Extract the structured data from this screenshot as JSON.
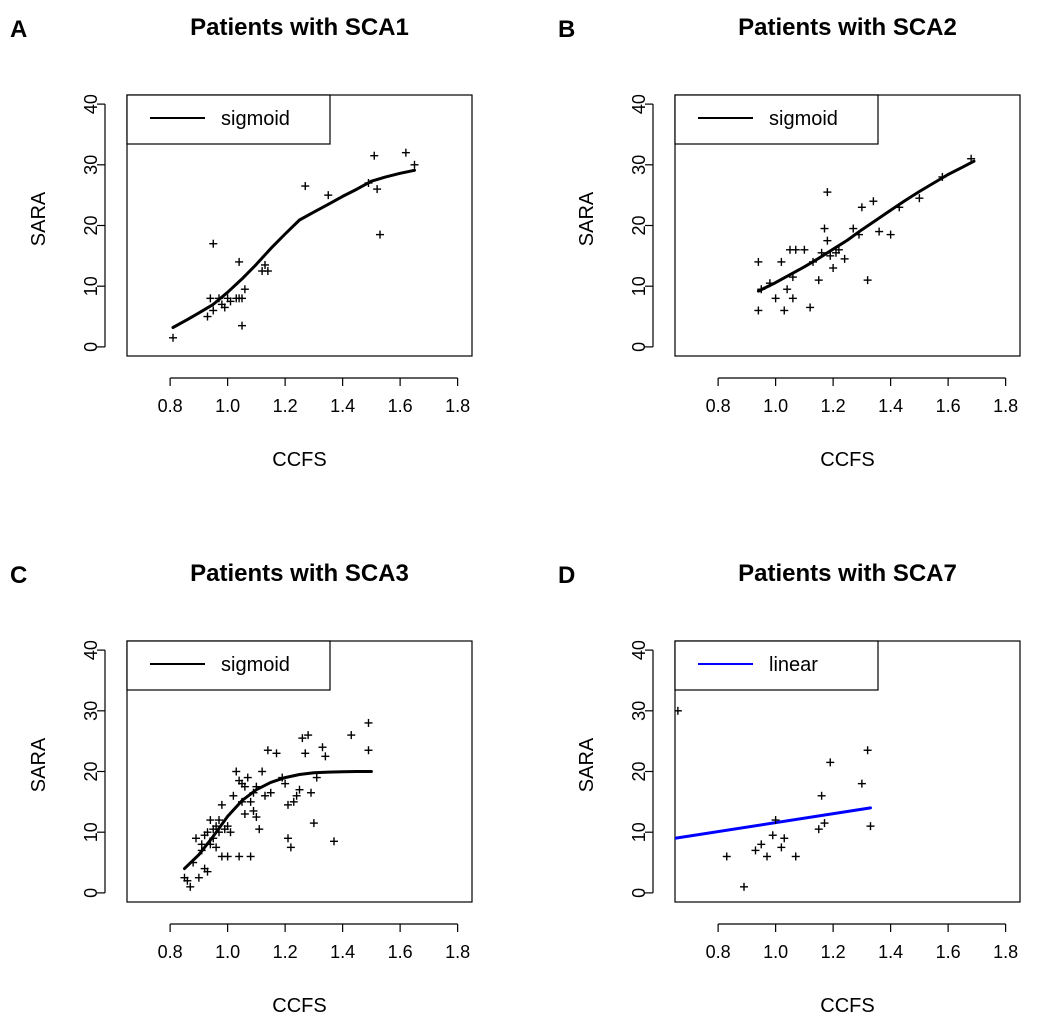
{
  "chart_data": [
    {
      "panel": "A",
      "type": "scatter",
      "title": "Patients with SCA1",
      "xlabel": "CCFS",
      "ylabel": "SARA",
      "xlim": [
        0.65,
        1.85
      ],
      "ylim": [
        -1.5,
        41.5
      ],
      "xticks": [
        "0.8",
        "1.0",
        "1.2",
        "1.4",
        "1.6",
        "1.8"
      ],
      "yticks": [
        "0",
        "10",
        "20",
        "30",
        "40"
      ],
      "legend": {
        "label": "sigmoid",
        "color": "#000000",
        "position": "top-left"
      },
      "fit": {
        "color": "#000000",
        "x": [
          0.81,
          0.86,
          0.9,
          0.95,
          1.0,
          1.05,
          1.1,
          1.15,
          1.2,
          1.25,
          1.3,
          1.35,
          1.4,
          1.45,
          1.5,
          1.55,
          1.6,
          1.65
        ],
        "y": [
          3.2,
          4.5,
          5.6,
          7.0,
          9.0,
          11.2,
          13.6,
          16.2,
          18.6,
          20.9,
          22.2,
          23.5,
          24.8,
          26.0,
          27.3,
          28.0,
          28.6,
          29.1
        ]
      },
      "points": {
        "x": [
          0.81,
          0.93,
          0.94,
          0.95,
          0.97,
          0.98,
          0.99,
          1.0,
          1.01,
          1.03,
          1.04,
          1.04,
          1.05,
          1.05,
          1.06,
          1.12,
          1.13,
          1.14,
          0.95,
          1.27,
          1.35,
          1.49,
          1.51,
          1.52,
          1.53,
          1.62,
          1.65
        ],
        "y": [
          1.5,
          5.0,
          8.0,
          6.0,
          8.0,
          7.0,
          6.5,
          8.0,
          7.5,
          8.0,
          14.0,
          8.0,
          3.5,
          8.0,
          9.5,
          12.5,
          13.5,
          12.5,
          17.0,
          26.5,
          25.0,
          27.0,
          31.5,
          26.0,
          18.5,
          32.0,
          30.0
        ]
      }
    },
    {
      "panel": "B",
      "type": "scatter",
      "title": "Patients with SCA2",
      "xlabel": "CCFS",
      "ylabel": "SARA",
      "xlim": [
        0.65,
        1.85
      ],
      "ylim": [
        -1.5,
        41.5
      ],
      "xticks": [
        "0.8",
        "1.0",
        "1.2",
        "1.4",
        "1.6",
        "1.8"
      ],
      "yticks": [
        "0",
        "10",
        "20",
        "30",
        "40"
      ],
      "legend": {
        "label": "sigmoid",
        "color": "#000000",
        "position": "top-left"
      },
      "fit": {
        "color": "#000000",
        "x": [
          0.94,
          1.0,
          1.05,
          1.1,
          1.15,
          1.2,
          1.25,
          1.3,
          1.35,
          1.4,
          1.45,
          1.5,
          1.55,
          1.6,
          1.65,
          1.69
        ],
        "y": [
          9.2,
          10.6,
          11.9,
          13.2,
          14.6,
          16.1,
          17.6,
          19.3,
          20.9,
          22.5,
          24.1,
          25.6,
          27.0,
          28.4,
          29.6,
          30.6
        ]
      },
      "points": {
        "x": [
          0.94,
          0.94,
          0.95,
          0.98,
          1.0,
          1.02,
          1.03,
          1.04,
          1.05,
          1.06,
          1.06,
          1.07,
          1.1,
          1.12,
          1.13,
          1.15,
          1.16,
          1.17,
          1.18,
          1.18,
          1.19,
          1.2,
          1.21,
          1.22,
          1.24,
          1.27,
          1.29,
          1.3,
          1.32,
          1.34,
          1.36,
          1.4,
          1.43,
          1.5,
          1.58,
          1.68
        ],
        "y": [
          14.0,
          6.0,
          9.5,
          10.5,
          8.0,
          14.0,
          6.0,
          9.5,
          16.0,
          8.0,
          11.5,
          16.0,
          16.0,
          6.5,
          14.0,
          11.0,
          15.5,
          19.5,
          25.5,
          17.5,
          15.0,
          13.0,
          15.5,
          16.0,
          14.5,
          19.5,
          18.5,
          23.0,
          11.0,
          24.0,
          19.0,
          18.5,
          23.0,
          24.5,
          28.0,
          31.0
        ]
      }
    },
    {
      "panel": "C",
      "type": "scatter",
      "title": "Patients with SCA3",
      "xlabel": "CCFS",
      "ylabel": "SARA",
      "xlim": [
        0.65,
        1.85
      ],
      "ylim": [
        -1.5,
        41.5
      ],
      "xticks": [
        "0.8",
        "1.0",
        "1.2",
        "1.4",
        "1.6",
        "1.8"
      ],
      "yticks": [
        "0",
        "10",
        "20",
        "30",
        "40"
      ],
      "legend": {
        "label": "sigmoid",
        "color": "#000000",
        "position": "top-left"
      },
      "fit": {
        "color": "#000000",
        "x": [
          0.85,
          0.9,
          0.95,
          1.0,
          1.05,
          1.1,
          1.15,
          1.2,
          1.25,
          1.3,
          1.35,
          1.4,
          1.45,
          1.5
        ],
        "y": [
          4.0,
          6.3,
          9.3,
          12.6,
          15.2,
          17.0,
          18.2,
          19.0,
          19.5,
          19.8,
          19.9,
          19.95,
          20.0,
          20.0
        ]
      },
      "points": {
        "x": [
          0.85,
          0.86,
          0.87,
          0.88,
          0.89,
          0.9,
          0.91,
          0.91,
          0.92,
          0.92,
          0.93,
          0.93,
          0.94,
          0.94,
          0.95,
          0.95,
          0.96,
          0.96,
          0.97,
          0.97,
          0.98,
          0.98,
          0.99,
          1.0,
          1.0,
          1.01,
          1.02,
          1.03,
          1.04,
          1.04,
          1.05,
          1.05,
          1.06,
          1.06,
          1.07,
          1.08,
          1.08,
          1.09,
          1.09,
          1.1,
          1.1,
          1.11,
          1.12,
          1.13,
          1.14,
          1.15,
          1.17,
          1.19,
          1.2,
          1.21,
          1.21,
          1.22,
          1.23,
          1.24,
          1.25,
          1.26,
          1.27,
          1.28,
          1.29,
          1.3,
          1.31,
          1.33,
          1.34,
          1.37,
          1.43,
          1.49,
          1.49
        ],
        "y": [
          2.5,
          2.0,
          1.0,
          5.0,
          9.0,
          2.5,
          8.0,
          7.0,
          4.0,
          9.5,
          3.5,
          10.0,
          12.0,
          8.0,
          10.5,
          9.0,
          11.0,
          7.5,
          12.0,
          10.0,
          6.0,
          14.5,
          10.5,
          6.0,
          11.0,
          10.0,
          16.0,
          20.0,
          6.0,
          18.5,
          15.0,
          18.0,
          13.0,
          17.5,
          19.0,
          15.0,
          6.0,
          13.5,
          16.5,
          12.5,
          17.5,
          10.5,
          20.0,
          16.0,
          23.5,
          16.5,
          23.0,
          19.0,
          18.0,
          9.0,
          14.5,
          7.5,
          15.0,
          16.0,
          17.0,
          25.5,
          23.0,
          26.0,
          16.5,
          11.5,
          19.0,
          24.0,
          22.5,
          8.5,
          26.0,
          28.0,
          23.5
        ]
      }
    },
    {
      "panel": "D",
      "type": "scatter",
      "title": "Patients with SCA7",
      "xlabel": "CCFS",
      "ylabel": "SARA",
      "xlim": [
        0.65,
        1.85
      ],
      "ylim": [
        -1.5,
        41.5
      ],
      "xticks": [
        "0.8",
        "1.0",
        "1.2",
        "1.4",
        "1.6",
        "1.8"
      ],
      "yticks": [
        "0",
        "10",
        "20",
        "30",
        "40"
      ],
      "legend": {
        "label": "linear",
        "color": "#0000ff",
        "position": "top-left"
      },
      "fit": {
        "color": "#0000ff",
        "x": [
          0.65,
          1.33
        ],
        "y": [
          9.0,
          14.0
        ]
      },
      "points": {
        "x": [
          0.66,
          0.83,
          0.89,
          0.93,
          0.95,
          0.97,
          0.99,
          1.0,
          1.02,
          1.03,
          1.07,
          1.15,
          1.16,
          1.17,
          1.19,
          1.3,
          1.32,
          1.33
        ],
        "y": [
          30.0,
          6.0,
          1.0,
          7.0,
          8.0,
          6.0,
          9.5,
          12.0,
          7.5,
          9.0,
          6.0,
          10.5,
          16.0,
          11.5,
          21.5,
          18.0,
          23.5,
          11.0
        ]
      }
    }
  ]
}
